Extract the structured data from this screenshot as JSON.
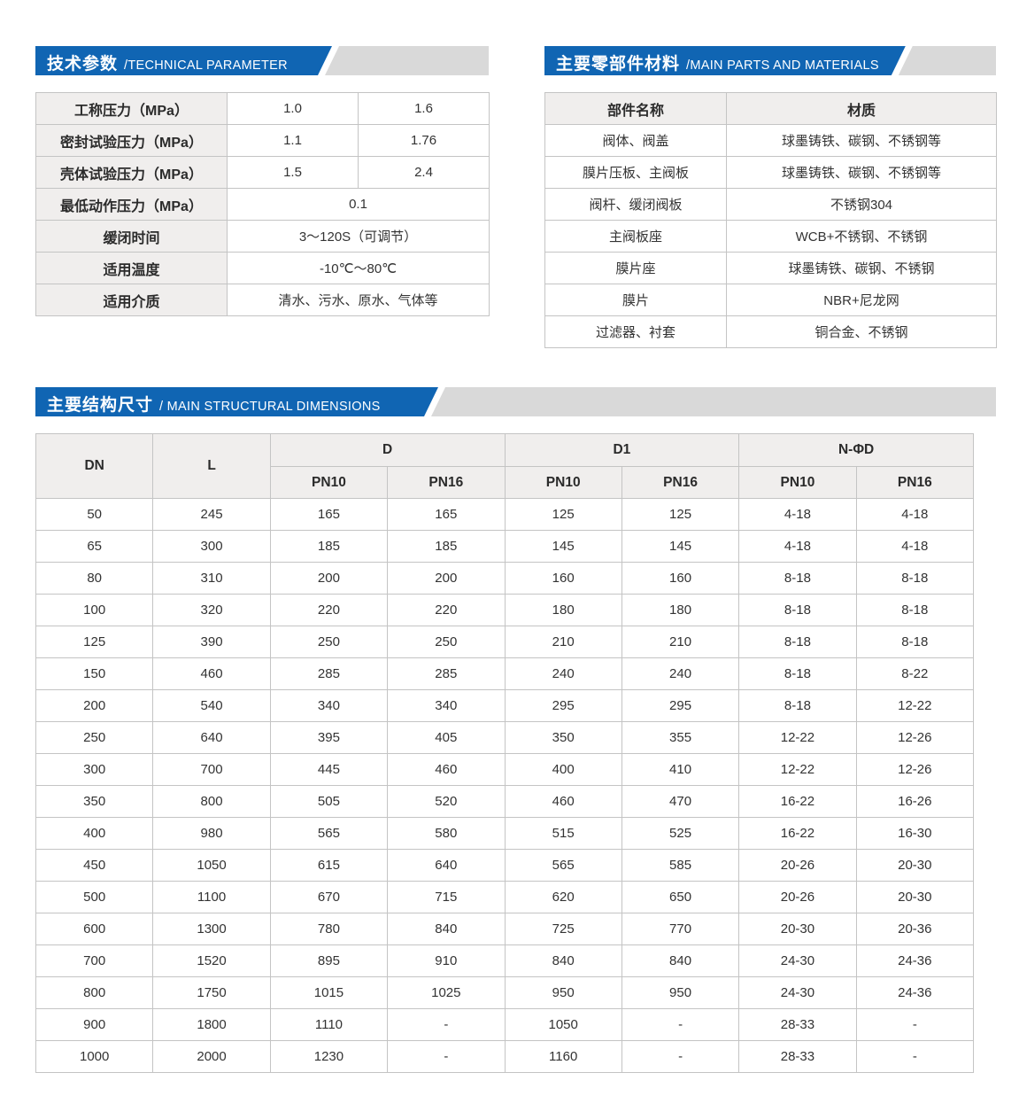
{
  "page": {
    "accent_blue": "#1065b3",
    "banner_gray": "#d9d9d9",
    "header_cell_bg": "#f0eeed"
  },
  "sections": {
    "technical": {
      "title_zh": "技术参数",
      "title_en": "/TECHNICAL PARAMETER",
      "rows": [
        {
          "label": "工称压力（MPa）",
          "span": false,
          "values": [
            "1.0",
            "1.6"
          ]
        },
        {
          "label": "密封试验压力（MPa）",
          "span": false,
          "values": [
            "1.1",
            "1.76"
          ]
        },
        {
          "label": "壳体试验压力（MPa）",
          "span": false,
          "values": [
            "1.5",
            "2.4"
          ]
        },
        {
          "label": "最低动作压力（MPa）",
          "span": true,
          "values": [
            "0.1"
          ]
        },
        {
          "label": "缓闭时间",
          "span": true,
          "values": [
            "3～120S（可调节）"
          ]
        },
        {
          "label": "适用温度",
          "span": true,
          "values": [
            "-10℃～80℃"
          ]
        },
        {
          "label": "适用介质",
          "span": true,
          "values": [
            "清水、污水、原水、气体等"
          ]
        }
      ]
    },
    "materials": {
      "title_zh": "主要零部件材料",
      "title_en": "/MAIN PARTS AND MATERIALS",
      "headers": [
        "部件名称",
        "材质"
      ],
      "rows": [
        [
          "阀体、阀盖",
          "球墨铸铁、碳钢、不锈钢等"
        ],
        [
          "膜片压板、主阀板",
          "球墨铸铁、碳钢、不锈钢等"
        ],
        [
          "阀杆、缓闭阀板",
          "不锈钢304"
        ],
        [
          "主阀板座",
          "WCB+不锈钢、不锈钢"
        ],
        [
          "膜片座",
          "球墨铸铁、碳钢、不锈钢"
        ],
        [
          "膜片",
          "NBR+尼龙网"
        ],
        [
          "过滤器、衬套",
          "铜合金、不锈钢"
        ]
      ]
    },
    "dimensions": {
      "title_zh": "主要结构尺寸",
      "title_en": "/ MAIN STRUCTURAL DIMENSIONS",
      "col_groups": [
        "DN",
        "L",
        "D",
        "D1",
        "N-ΦD"
      ],
      "sub_headers": [
        "PN10",
        "PN16",
        "PN10",
        "PN16",
        "PN10",
        "PN16"
      ],
      "rows": [
        [
          "50",
          "245",
          "165",
          "165",
          "125",
          "125",
          "4-18",
          "4-18"
        ],
        [
          "65",
          "300",
          "185",
          "185",
          "145",
          "145",
          "4-18",
          "4-18"
        ],
        [
          "80",
          "310",
          "200",
          "200",
          "160",
          "160",
          "8-18",
          "8-18"
        ],
        [
          "100",
          "320",
          "220",
          "220",
          "180",
          "180",
          "8-18",
          "8-18"
        ],
        [
          "125",
          "390",
          "250",
          "250",
          "210",
          "210",
          "8-18",
          "8-18"
        ],
        [
          "150",
          "460",
          "285",
          "285",
          "240",
          "240",
          "8-18",
          "8-22"
        ],
        [
          "200",
          "540",
          "340",
          "340",
          "295",
          "295",
          "8-18",
          "12-22"
        ],
        [
          "250",
          "640",
          "395",
          "405",
          "350",
          "355",
          "12-22",
          "12-26"
        ],
        [
          "300",
          "700",
          "445",
          "460",
          "400",
          "410",
          "12-22",
          "12-26"
        ],
        [
          "350",
          "800",
          "505",
          "520",
          "460",
          "470",
          "16-22",
          "16-26"
        ],
        [
          "400",
          "980",
          "565",
          "580",
          "515",
          "525",
          "16-22",
          "16-30"
        ],
        [
          "450",
          "1050",
          "615",
          "640",
          "565",
          "585",
          "20-26",
          "20-30"
        ],
        [
          "500",
          "1100",
          "670",
          "715",
          "620",
          "650",
          "20-26",
          "20-30"
        ],
        [
          "600",
          "1300",
          "780",
          "840",
          "725",
          "770",
          "20-30",
          "20-36"
        ],
        [
          "700",
          "1520",
          "895",
          "910",
          "840",
          "840",
          "24-30",
          "24-36"
        ],
        [
          "800",
          "1750",
          "1015",
          "1025",
          "950",
          "950",
          "24-30",
          "24-36"
        ],
        [
          "900",
          "1800",
          "1110",
          "-",
          "1050",
          "-",
          "28-33",
          "-"
        ],
        [
          "1000",
          "2000",
          "1230",
          "-",
          "1160",
          "-",
          "28-33",
          "-"
        ]
      ]
    }
  }
}
